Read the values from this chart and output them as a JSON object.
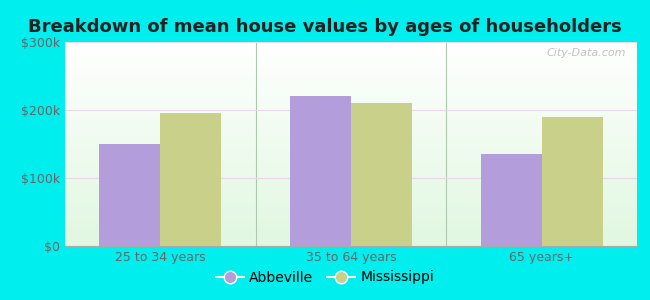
{
  "title": "Breakdown of mean house values by ages of householders",
  "categories": [
    "25 to 34 years",
    "35 to 64 years",
    "65 years+"
  ],
  "abbeville_values": [
    150000,
    220000,
    135000
  ],
  "mississippi_values": [
    195000,
    210000,
    190000
  ],
  "abbeville_color": "#b39ddb",
  "mississippi_color": "#c8d08a",
  "bar_width": 0.32,
  "ylim": [
    0,
    300000
  ],
  "yticks": [
    0,
    100000,
    200000,
    300000
  ],
  "ytick_labels": [
    "$0",
    "$100k",
    "$200k",
    "$300k"
  ],
  "background_color": "#00eeee",
  "legend_labels": [
    "Abbeville",
    "Mississippi"
  ],
  "watermark": "City-Data.com",
  "title_fontsize": 13,
  "tick_fontsize": 9,
  "legend_fontsize": 10,
  "separator_color": "#b0c8b0",
  "grid_color": "#d8ecd8"
}
